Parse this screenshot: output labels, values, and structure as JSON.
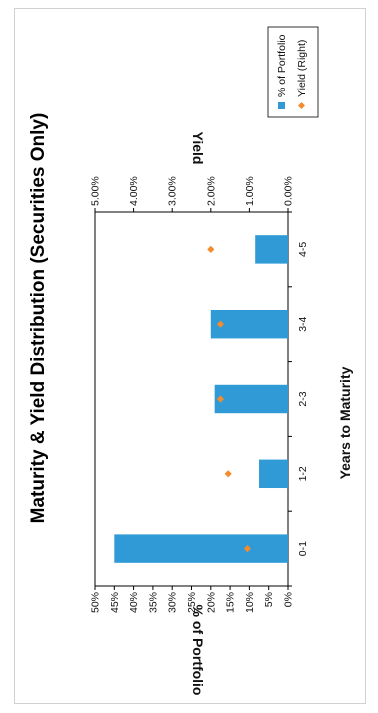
{
  "chart_data": {
    "type": "bar",
    "title": "Maturity & Yield Distribution (Securities Only)",
    "xlabel": "Years to Maturity",
    "ylabel": "% of Portfolio",
    "y2label": "Yield",
    "categories": [
      "0-1",
      "1-2",
      "2-3",
      "3-4",
      "4-5"
    ],
    "series": [
      {
        "name": "% of Portfolio",
        "type": "bar",
        "axis": "left",
        "color": "#2f9ad6",
        "values": [
          45,
          7.5,
          19,
          20,
          8.5
        ]
      },
      {
        "name": "Yield (Right)",
        "type": "scatter",
        "axis": "right",
        "color": "#f28c2e",
        "values": [
          1.05,
          1.55,
          1.75,
          1.75,
          2.0
        ]
      }
    ],
    "ylim": [
      0,
      50
    ],
    "y2lim": [
      0,
      5
    ],
    "yticks": [
      "0%",
      "5%",
      "10%",
      "15%",
      "20%",
      "25%",
      "30%",
      "35%",
      "40%",
      "45%",
      "50%"
    ],
    "y2ticks": [
      "0.00%",
      "1.00%",
      "2.00%",
      "3.00%",
      "4.00%",
      "5.00%"
    ],
    "grid": false,
    "legend": "top-right"
  }
}
